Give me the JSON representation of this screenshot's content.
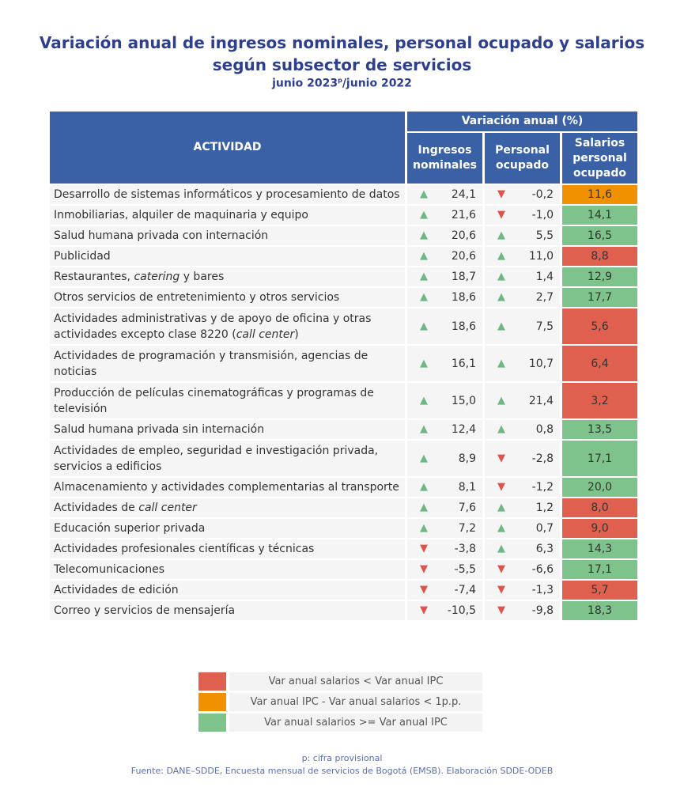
{
  "title_line1": "Variación anual de ingresos nominales, personal ocupado y salarios",
  "title_line2": "según subsector de servicios",
  "subtitle_pre": "junio 2023",
  "subtitle_sup": "p",
  "subtitle_post": "/junio 2022",
  "colors": {
    "header": "#3a61a6",
    "green": "#7dc38b",
    "red": "#e0604f",
    "orange": "#f29100",
    "up": "#6fb886",
    "down": "#e0524a"
  },
  "chart_data": {
    "type": "table",
    "header_group": "Variación anual (%)",
    "columns": [
      "ACTIVIDAD",
      "Ingresos nominales",
      "Personal ocupado",
      "Salarios personal ocupado"
    ],
    "rows": [
      {
        "activity": "Desarrollo de sistemas informáticos y procesamiento de datos",
        "italic": "",
        "ingresos": "24,1",
        "personal": "-0,2",
        "salarios": "11,6",
        "cat": "orange"
      },
      {
        "activity": "Inmobiliarias, alquiler de maquinaria y equipo",
        "italic": "",
        "ingresos": "21,6",
        "personal": "-1,0",
        "salarios": "14,1",
        "cat": "green"
      },
      {
        "activity": "Salud humana privada con internación",
        "italic": "",
        "ingresos": "20,6",
        "personal": "5,5",
        "salarios": "16,5",
        "cat": "green"
      },
      {
        "activity": "Publicidad",
        "italic": "",
        "ingresos": "20,6",
        "personal": "11,0",
        "salarios": "8,8",
        "cat": "red"
      },
      {
        "activity": "Restaurantes, catering y bares",
        "italic": "catering",
        "ingresos": "18,7",
        "personal": "1,4",
        "salarios": "12,9",
        "cat": "green"
      },
      {
        "activity": "Otros servicios de entretenimiento y otros servicios",
        "italic": "",
        "ingresos": "18,6",
        "personal": "2,7",
        "salarios": "17,7",
        "cat": "green"
      },
      {
        "activity": "Actividades administrativas y de apoyo de oficina y otras actividades excepto clase 8220 (call center)",
        "italic": "call center",
        "ingresos": "18,6",
        "personal": "7,5",
        "salarios": "5,6",
        "cat": "red"
      },
      {
        "activity": "Actividades de programación y transmisión,  agencias de noticias",
        "italic": "",
        "ingresos": "16,1",
        "personal": "10,7",
        "salarios": "6,4",
        "cat": "red"
      },
      {
        "activity": "Producción de películas cinematográficas y programas de televisión",
        "italic": "",
        "ingresos": "15,0",
        "personal": "21,4",
        "salarios": "3,2",
        "cat": "red"
      },
      {
        "activity": "Salud humana privada sin internación",
        "italic": "",
        "ingresos": "12,4",
        "personal": "0,8",
        "salarios": "13,5",
        "cat": "green"
      },
      {
        "activity": "Actividades de empleo, seguridad e investigación privada, servicios a edificios",
        "italic": "",
        "ingresos": "8,9",
        "personal": "-2,8",
        "salarios": "17,1",
        "cat": "green"
      },
      {
        "activity": "Almacenamiento y actividades complementarias al transporte",
        "italic": "",
        "ingresos": "8,1",
        "personal": "-1,2",
        "salarios": "20,0",
        "cat": "green"
      },
      {
        "activity": "Actividades de call center",
        "italic": "call center",
        "ingresos": "7,6",
        "personal": "1,2",
        "salarios": "8,0",
        "cat": "red"
      },
      {
        "activity": "Educación superior privada",
        "italic": "",
        "ingresos": "7,2",
        "personal": "0,7",
        "salarios": "9,0",
        "cat": "red"
      },
      {
        "activity": "Actividades profesionales científicas y técnicas",
        "italic": "",
        "ingresos": "-3,8",
        "personal": "6,3",
        "salarios": "14,3",
        "cat": "green"
      },
      {
        "activity": "Telecomunicaciones",
        "italic": "",
        "ingresos": "-5,5",
        "personal": "-6,6",
        "salarios": "17,1",
        "cat": "green"
      },
      {
        "activity": "Actividades de edición",
        "italic": "",
        "ingresos": "-7,4",
        "personal": "-1,3",
        "salarios": "5,7",
        "cat": "red"
      },
      {
        "activity": "Correo y servicios de mensajería",
        "italic": "",
        "ingresos": "-10,5",
        "personal": "-9,8",
        "salarios": "18,3",
        "cat": "green"
      }
    ],
    "legend": [
      {
        "cat": "red",
        "label": "Var anual salarios < Var anual IPC"
      },
      {
        "cat": "orange",
        "label": "Var anual IPC - Var anual salarios < 1p.p."
      },
      {
        "cat": "green",
        "label": "Var anual salarios >= Var anual IPC"
      }
    ]
  },
  "footnote": "p: cifra provisional",
  "source": "Fuente: DANE–SDDE, Encuesta mensual de servicios de Bogotá (EMSB). Elaboración SDDE-ODEB"
}
